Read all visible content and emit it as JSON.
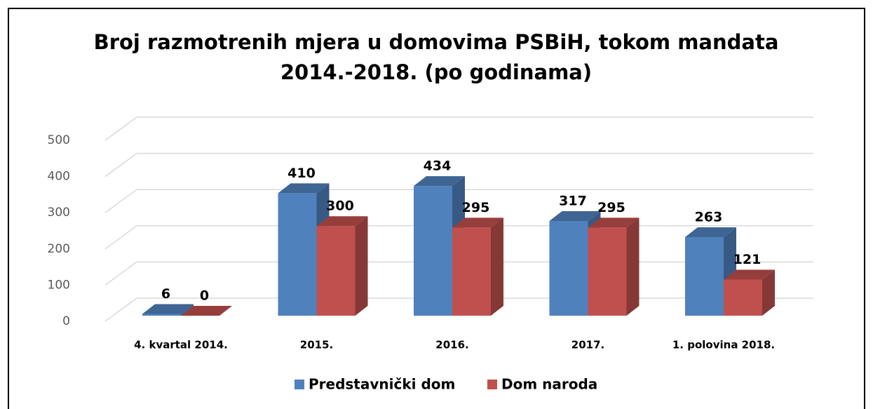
{
  "chart_data": {
    "type": "bar3d",
    "title": [
      "Broj razmotrenih mjera u domovima PSBiH, tokom mandata",
      "2014.-2018. (po godinama)"
    ],
    "categories": [
      "4. kvartal 2014.",
      "2015.",
      "2016.",
      "2017.",
      "1. polovina 2018."
    ],
    "series": [
      {
        "name": "Predstavnički dom",
        "color": "#4f81bd",
        "values": [
          6,
          410,
          434,
          317,
          263
        ]
      },
      {
        "name": "Dom naroda",
        "color": "#c0504d",
        "values": [
          0,
          300,
          295,
          295,
          121
        ]
      }
    ],
    "ylim": [
      0,
      500
    ],
    "yticks": [
      0,
      100,
      200,
      300,
      400,
      500
    ],
    "grid": true,
    "legend": "bottom"
  }
}
